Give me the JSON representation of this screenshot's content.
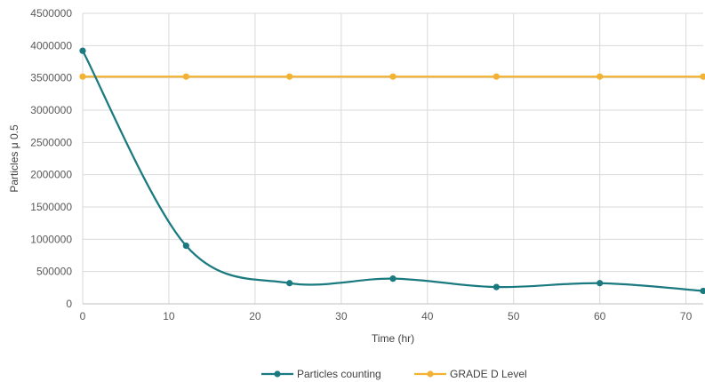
{
  "chart_data": {
    "type": "line",
    "title": "",
    "xlabel": "Time (hr)",
    "ylabel": "Particles μ 0.5",
    "xlim": [
      0,
      72
    ],
    "ylim": [
      0,
      4500000
    ],
    "x_ticks": [
      0,
      10,
      20,
      30,
      40,
      50,
      60,
      70
    ],
    "y_ticks": [
      0,
      500000,
      1000000,
      1500000,
      2000000,
      2500000,
      3000000,
      3500000,
      4000000,
      4500000
    ],
    "grid": true,
    "legend_position": "bottom",
    "smooth": true,
    "series": [
      {
        "name": "Particles counting",
        "color": "#1a7a80",
        "x": [
          0,
          12,
          24,
          36,
          48,
          60,
          72
        ],
        "y": [
          3920000,
          900000,
          320000,
          390000,
          260000,
          320000,
          200000
        ]
      },
      {
        "name": "GRADE D Level",
        "color": "#f2b233",
        "x": [
          0,
          12,
          24,
          36,
          48,
          60,
          72
        ],
        "y": [
          3520000,
          3520000,
          3520000,
          3520000,
          3520000,
          3520000,
          3520000
        ]
      }
    ]
  }
}
